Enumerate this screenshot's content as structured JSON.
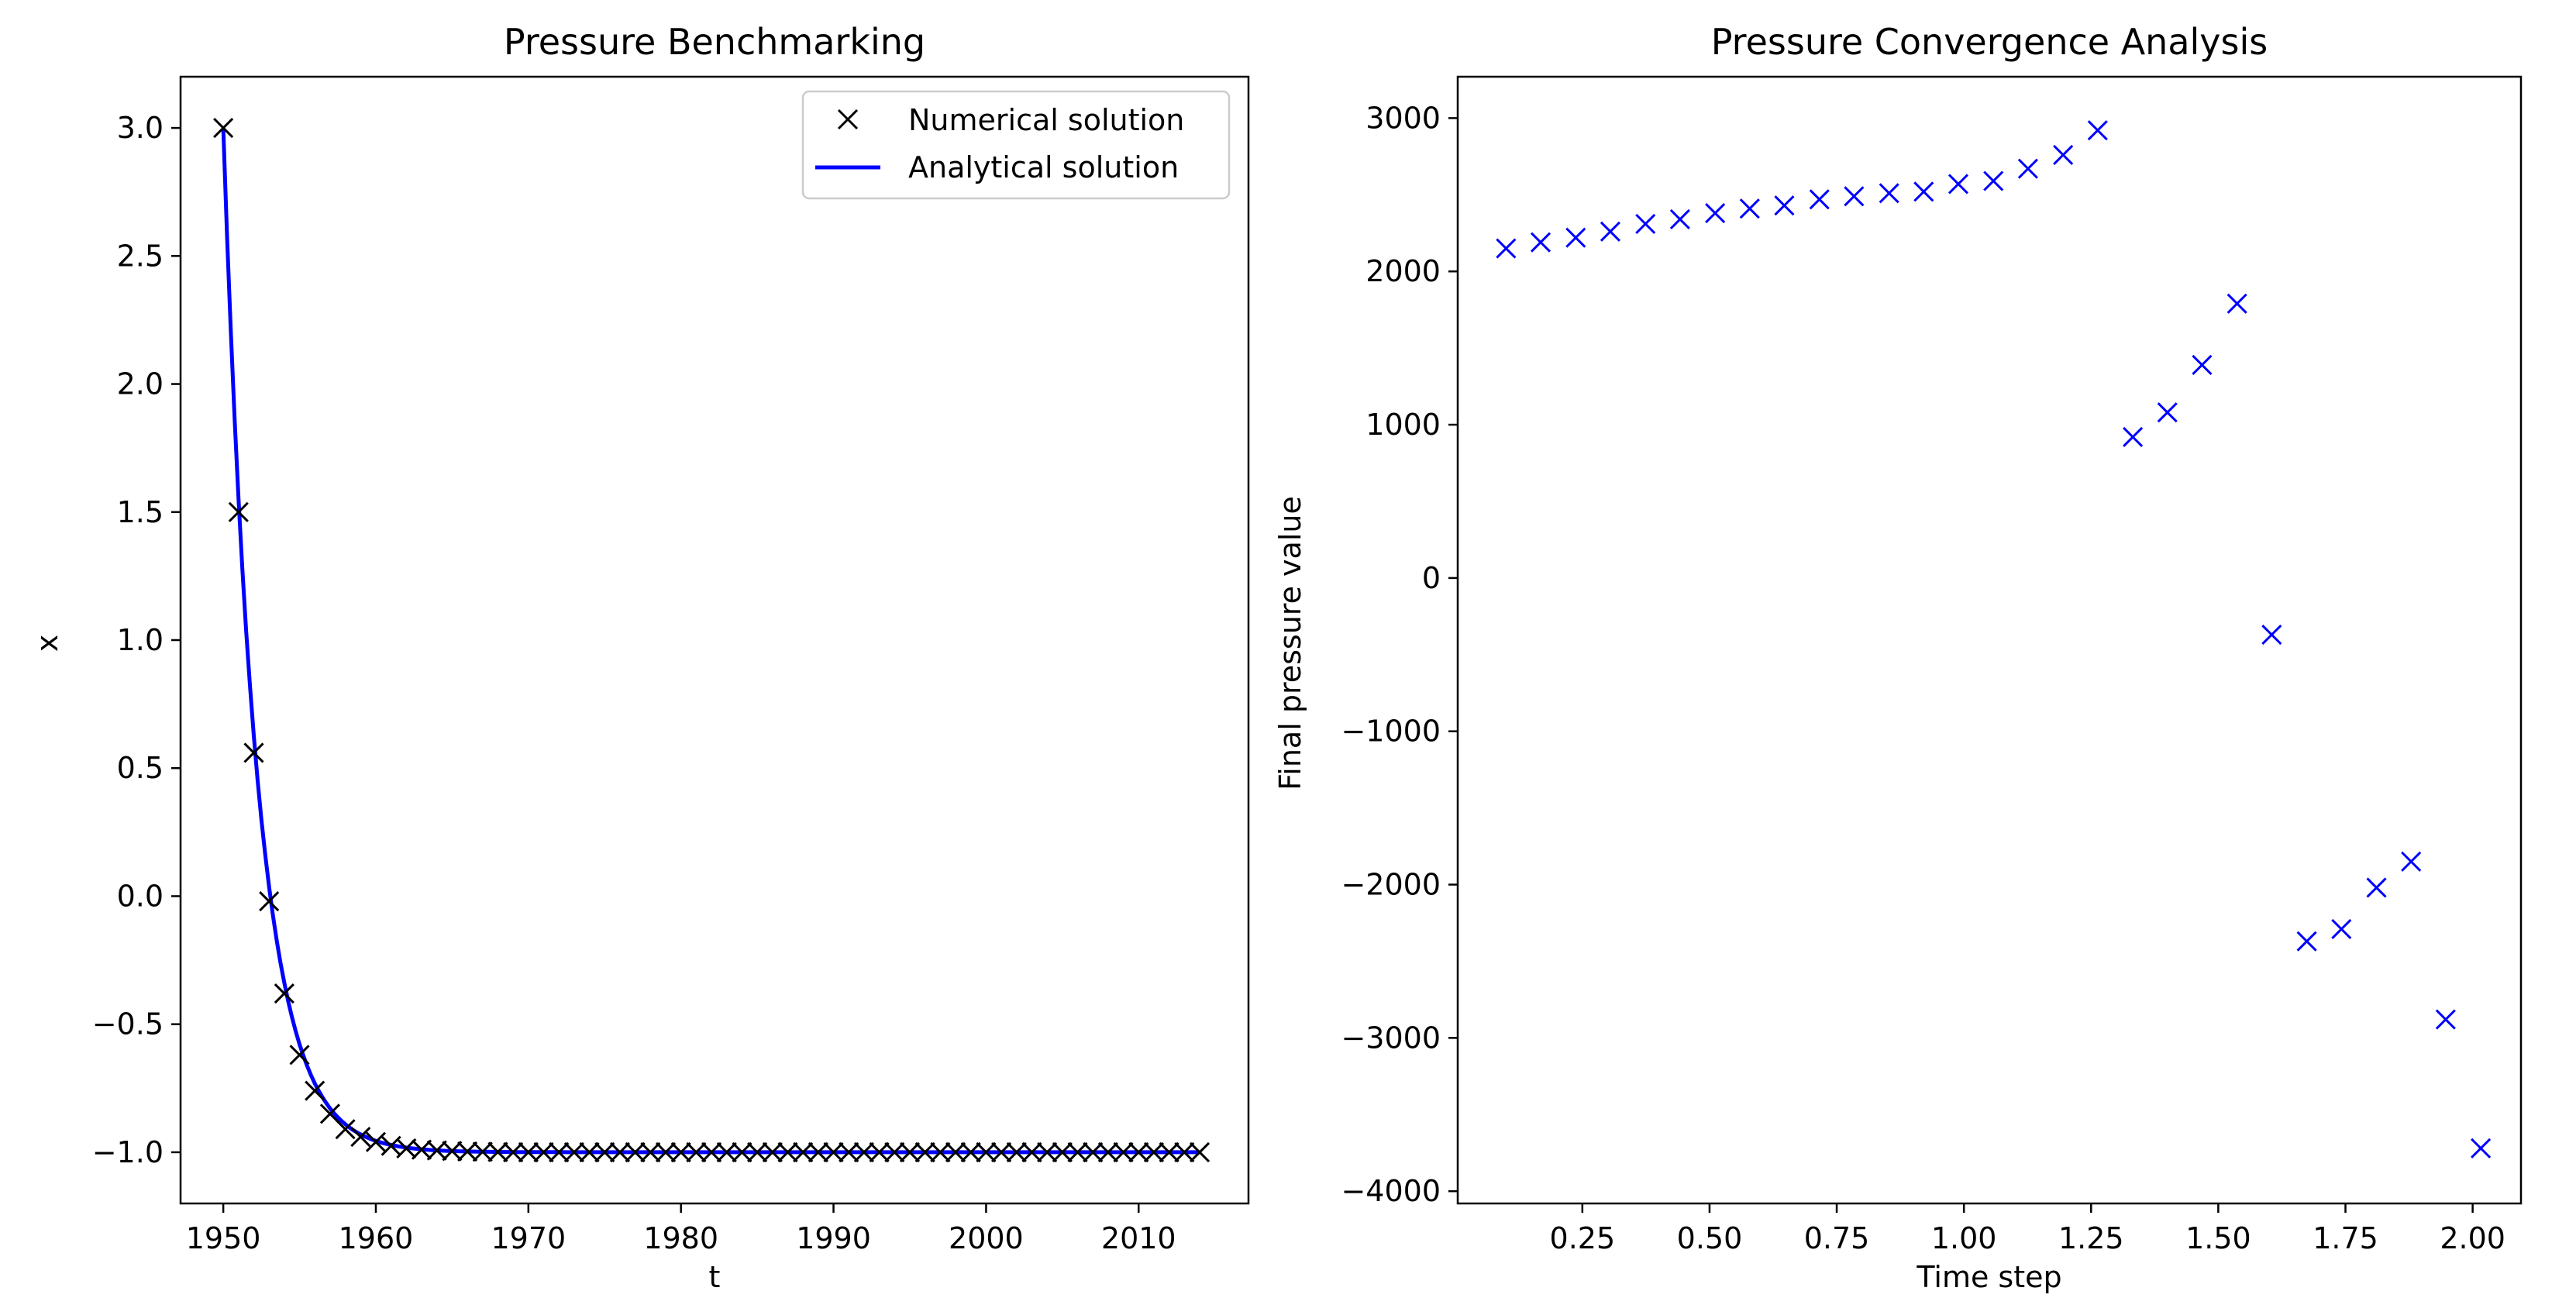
{
  "chart_data": [
    {
      "type": "line",
      "title": "Pressure Benchmarking",
      "xlabel": "t",
      "ylabel": "x",
      "xlim": [
        1947.2,
        2017.2
      ],
      "ylim": [
        -1.2,
        3.2
      ],
      "xticks": [
        1950,
        1960,
        1970,
        1980,
        1990,
        2000,
        2010
      ],
      "yticks": [
        -1.0,
        -0.5,
        0.0,
        0.5,
        1.0,
        1.5,
        2.0,
        2.5,
        3.0
      ],
      "ytick_labels": [
        "−1.0",
        "−0.5",
        "0.0",
        "0.5",
        "1.0",
        "1.5",
        "2.0",
        "2.5",
        "3.0"
      ],
      "legend": {
        "placement": "upper right",
        "entries": [
          "Numerical solution",
          "Analytical solution"
        ]
      },
      "series": [
        {
          "name": "Numerical solution",
          "style": "markers-x",
          "color": "#000000",
          "x": [
            1950,
            1951,
            1952,
            1953,
            1954,
            1955,
            1956,
            1957,
            1958,
            1959,
            1960,
            1961,
            1962,
            1963,
            1964,
            1965,
            1966,
            1967,
            1968,
            1969,
            1970,
            1971,
            1972,
            1973,
            1974,
            1975,
            1976,
            1977,
            1978,
            1979,
            1980,
            1981,
            1982,
            1983,
            1984,
            1985,
            1986,
            1987,
            1988,
            1989,
            1990,
            1991,
            1992,
            1993,
            1994,
            1995,
            1996,
            1997,
            1998,
            1999,
            2000,
            2001,
            2002,
            2003,
            2004,
            2005,
            2006,
            2007,
            2008,
            2009,
            2010,
            2011,
            2012,
            2013,
            2014
          ],
          "y": [
            3.0,
            1.5,
            0.56,
            -0.02,
            -0.38,
            -0.62,
            -0.76,
            -0.85,
            -0.91,
            -0.94,
            -0.96,
            -0.975,
            -0.985,
            -0.99,
            -0.993,
            -0.995,
            -0.997,
            -0.998,
            -0.999,
            -1,
            -1,
            -1,
            -1,
            -1,
            -1,
            -1,
            -1,
            -1,
            -1,
            -1,
            -1,
            -1,
            -1,
            -1,
            -1,
            -1,
            -1,
            -1,
            -1,
            -1,
            -1,
            -1,
            -1,
            -1,
            -1,
            -1,
            -1,
            -1,
            -1,
            -1,
            -1,
            -1,
            -1,
            -1,
            -1,
            -1,
            -1,
            -1,
            -1,
            -1,
            -1,
            -1,
            -1,
            -1,
            -1
          ]
        },
        {
          "name": "Analytical solution",
          "style": "line",
          "color": "#0000ff",
          "function": "-1 + 4*exp(-0.45*(t-1950))",
          "x_range": [
            1950,
            2014
          ]
        }
      ]
    },
    {
      "type": "scatter",
      "title": "Pressure Convergence Analysis",
      "xlabel": "Time step",
      "ylabel": "Final pressure value",
      "xlim": [
        0.005,
        2.095
      ],
      "ylim": [
        -4080,
        3270
      ],
      "xticks": [
        0.25,
        0.5,
        0.75,
        1.0,
        1.25,
        1.5,
        1.75,
        2.0
      ],
      "xtick_labels": [
        "0.25",
        "0.50",
        "0.75",
        "1.00",
        "1.25",
        "1.50",
        "1.75",
        "2.00"
      ],
      "yticks": [
        -4000,
        -3000,
        -2000,
        -1000,
        0,
        1000,
        2000,
        3000
      ],
      "ytick_labels": [
        "−4000",
        "−3000",
        "−2000",
        "−1000",
        "0",
        "1000",
        "2000",
        "3000"
      ],
      "series": [
        {
          "style": "markers-x",
          "color": "#0000ff",
          "x": [
            0.1,
            0.168,
            0.237,
            0.305,
            0.374,
            0.442,
            0.511,
            0.579,
            0.647,
            0.716,
            0.784,
            0.853,
            0.921,
            0.989,
            1.058,
            1.126,
            1.195,
            1.263,
            1.332,
            1.4,
            1.468,
            1.537,
            1.605,
            1.674,
            1.742,
            1.811,
            1.879,
            1.947,
            2.016
          ],
          "y": [
            2150,
            2190,
            2220,
            2260,
            2310,
            2340,
            2380,
            2410,
            2430,
            2470,
            2490,
            2510,
            2520,
            2570,
            2590,
            2670,
            2760,
            2920,
            920,
            1080,
            1390,
            1790,
            -370,
            -2370,
            -2290,
            -2020,
            -1850,
            -2880,
            -3720
          ]
        }
      ]
    }
  ]
}
